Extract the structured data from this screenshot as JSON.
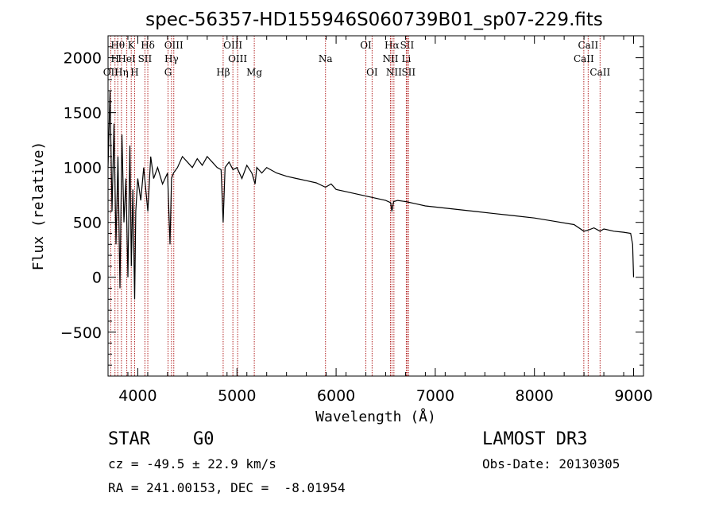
{
  "chart_data": {
    "type": "line",
    "title": "spec-56357-HD155946S060739B01_sp07-229.fits",
    "xlabel": "Wavelength (Å)",
    "ylabel": "Flux (relative)",
    "xlim": [
      3700,
      9100
    ],
    "ylim": [
      -900,
      2200
    ],
    "xticks": [
      4000,
      5000,
      6000,
      7000,
      8000,
      9000
    ],
    "yticks": [
      -500,
      0,
      500,
      1000,
      1500,
      2000
    ],
    "series": [
      {
        "name": "spectrum",
        "x": [
          3700,
          3720,
          3740,
          3760,
          3780,
          3800,
          3820,
          3840,
          3860,
          3880,
          3900,
          3920,
          3935,
          3950,
          3968,
          3980,
          4000,
          4030,
          4060,
          4101,
          4130,
          4160,
          4200,
          4250,
          4300,
          4325,
          4340,
          4360,
          4400,
          4450,
          4500,
          4550,
          4600,
          4650,
          4700,
          4750,
          4800,
          4840,
          4861,
          4880,
          4920,
          4960,
          5000,
          5050,
          5100,
          5150,
          5183,
          5200,
          5250,
          5300,
          5400,
          5500,
          5600,
          5700,
          5800,
          5893,
          5950,
          6000,
          6100,
          6200,
          6300,
          6400,
          6500,
          6550,
          6563,
          6580,
          6620,
          6700,
          6800,
          6900,
          7000,
          7200,
          7400,
          7600,
          7800,
          8000,
          8200,
          8400,
          8498,
          8542,
          8600,
          8662,
          8700,
          8800,
          8900,
          8970,
          8990,
          9000
        ],
        "values": [
          1000,
          1700,
          600,
          1400,
          300,
          1100,
          -100,
          1300,
          500,
          900,
          0,
          1200,
          100,
          800,
          -200,
          600,
          900,
          700,
          1000,
          600,
          1100,
          900,
          1000,
          850,
          950,
          300,
          900,
          950,
          1000,
          1100,
          1050,
          1000,
          1080,
          1020,
          1100,
          1050,
          1000,
          980,
          500,
          1000,
          1050,
          980,
          1000,
          900,
          1020,
          950,
          850,
          1000,
          950,
          1000,
          950,
          920,
          900,
          880,
          860,
          820,
          850,
          800,
          780,
          760,
          740,
          720,
          700,
          680,
          600,
          690,
          700,
          690,
          670,
          650,
          640,
          620,
          600,
          580,
          560,
          540,
          510,
          480,
          420,
          430,
          450,
          420,
          440,
          420,
          410,
          400,
          300,
          0
        ]
      }
    ],
    "lines": [
      {
        "name": "Hθ",
        "wave": 3798,
        "row": 0
      },
      {
        "name": "K",
        "wave": 3934,
        "row": 0
      },
      {
        "name": "Hδ",
        "wave": 4101,
        "row": 0
      },
      {
        "name": "OIII",
        "wave": 4363,
        "row": 0
      },
      {
        "name": "OIII",
        "wave": 4959,
        "row": 0
      },
      {
        "name": "OI",
        "wave": 6300,
        "row": 0
      },
      {
        "name": "Hα",
        "wave": 6563,
        "row": 0
      },
      {
        "name": "SII",
        "wave": 6716,
        "row": 0
      },
      {
        "name": "CaII",
        "wave": 8542,
        "row": 0
      },
      {
        "name": "H",
        "wave": 3770,
        "row": 1
      },
      {
        "name": "HeI",
        "wave": 3889,
        "row": 1
      },
      {
        "name": "SII",
        "wave": 4072,
        "row": 1
      },
      {
        "name": "Hγ",
        "wave": 4340,
        "row": 1
      },
      {
        "name": "OIII",
        "wave": 5007,
        "row": 1
      },
      {
        "name": "Na",
        "wave": 5893,
        "row": 1
      },
      {
        "name": "NII",
        "wave": 6548,
        "row": 1
      },
      {
        "name": "Li",
        "wave": 6708,
        "row": 1
      },
      {
        "name": "CaII",
        "wave": 8498,
        "row": 1
      },
      {
        "name": "OII",
        "wave": 3727,
        "row": 2
      },
      {
        "name": "Hη",
        "wave": 3835,
        "row": 2
      },
      {
        "name": "H",
        "wave": 3968,
        "row": 2
      },
      {
        "name": "G",
        "wave": 4305,
        "row": 2
      },
      {
        "name": "Hβ",
        "wave": 4861,
        "row": 2
      },
      {
        "name": "Mg",
        "wave": 5175,
        "row": 2
      },
      {
        "name": "OI",
        "wave": 6363,
        "row": 2
      },
      {
        "name": "NII",
        "wave": 6583,
        "row": 2
      },
      {
        "name": "SII",
        "wave": 6731,
        "row": 2
      },
      {
        "name": "CaII",
        "wave": 8662,
        "row": 2
      }
    ]
  },
  "info": {
    "class_label": "STAR",
    "subclass": "G0",
    "survey": "LAMOST DR3",
    "cz": "cz = -49.5 ± 22.9 km/s",
    "obs_date": "Obs-Date: 20130305",
    "coords": "RA = 241.00153, DEC =  -8.01954"
  },
  "colors": {
    "line_marker": "#b22222",
    "spectrum": "#000000"
  }
}
